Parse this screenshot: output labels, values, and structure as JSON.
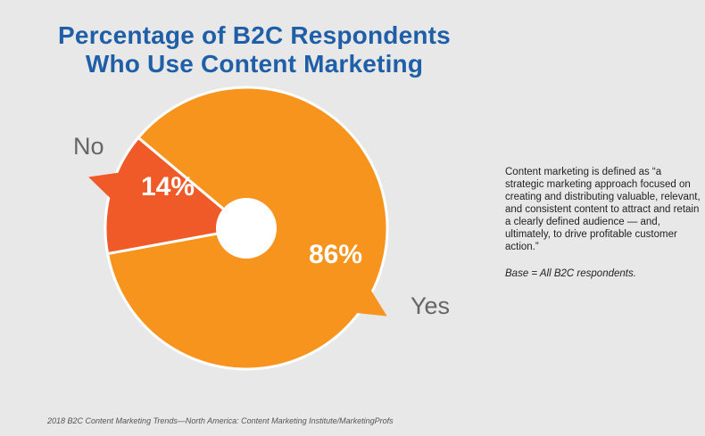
{
  "title": {
    "line1": "Percentage of B2C Respondents",
    "line2": "Who Use Content Marketing"
  },
  "chart_data": {
    "type": "pie",
    "title": "Percentage of B2C Respondents Who Use Content Marketing",
    "slices": [
      {
        "label": "Yes",
        "value": 86,
        "value_label": "86%",
        "color": "#f7941d"
      },
      {
        "label": "No",
        "value": 14,
        "value_label": "14%",
        "color": "#f05a28"
      }
    ],
    "legend": "callouts"
  },
  "note": {
    "definition": "Content marketing is defined as “a strategic marketing approach focused on creating and distributing valuable, relevant, and consistent content to attract and retain a clearly defined audience — and, ultimately, to drive profitable customer action.”",
    "base": "Base = All B2C respondents."
  },
  "source": "2018 B2C Content Marketing Trends—North America: Content Marketing Institute/MarketingProfs"
}
